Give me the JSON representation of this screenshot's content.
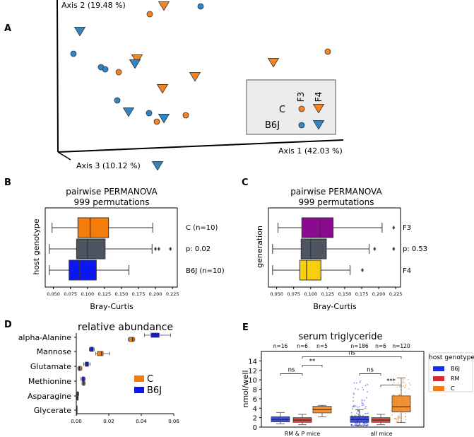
{
  "panel_letters": {
    "A": "A",
    "B": "B",
    "C": "C",
    "D": "D",
    "E": "E"
  },
  "colors": {
    "C_orange": "#f28522",
    "B6J_blue": "#2f86c4",
    "box_orange": "#f47d0c",
    "box_dark": "#4d5563",
    "box_blue": "#0b16f5",
    "box_purple": "#8a0b8e",
    "box_gold": "#f7cf0b",
    "E_blue": "#1a2fd6",
    "E_red": "#cf2f2a",
    "E_orange": "#f07e12",
    "legend_bg": "#ececec"
  },
  "chart_data": [
    {
      "id": "A",
      "type": "scatter",
      "subtype": "3d-pcoa",
      "axis_labels": {
        "x": "Axis 1 (42.03 %)",
        "y": "Axis 2 (19.48 %)",
        "z": "Axis 3 (10.12 %)"
      },
      "legend": {
        "columns": [
          "F3",
          "F4"
        ],
        "rows": [
          {
            "label": "C",
            "color": "#f28522"
          },
          {
            "label": "B6J",
            "color": "#2f86c4"
          }
        ]
      },
      "points": [
        {
          "group": "C",
          "generation": "F3",
          "x": 212,
          "y": 20
        },
        {
          "group": "C",
          "generation": "F4",
          "x": 232,
          "y": 8
        },
        {
          "group": "B6J",
          "generation": "F3",
          "x": 284,
          "y": 9
        },
        {
          "group": "B6J",
          "generation": "F4",
          "x": 113,
          "y": 44
        },
        {
          "group": "B6J",
          "generation": "F3",
          "x": 104,
          "y": 76
        },
        {
          "group": "B6J",
          "generation": "F3",
          "x": 143,
          "y": 95
        },
        {
          "group": "B6J",
          "generation": "F3",
          "x": 149,
          "y": 98
        },
        {
          "group": "C",
          "generation": "F3",
          "x": 168,
          "y": 102
        },
        {
          "group": "C",
          "generation": "F4",
          "x": 194,
          "y": 83
        },
        {
          "group": "B6J",
          "generation": "F4",
          "x": 191,
          "y": 90
        },
        {
          "group": "C",
          "generation": "F3",
          "x": 464,
          "y": 73
        },
        {
          "group": "C",
          "generation": "F4",
          "x": 387,
          "y": 88
        },
        {
          "group": "C",
          "generation": "F4",
          "x": 276,
          "y": 108
        },
        {
          "group": "C",
          "generation": "F4",
          "x": 230,
          "y": 125
        },
        {
          "group": "B6J",
          "generation": "F3",
          "x": 166,
          "y": 142
        },
        {
          "group": "B6J",
          "generation": "F4",
          "x": 182,
          "y": 158
        },
        {
          "group": "B6J",
          "generation": "F3",
          "x": 211,
          "y": 160
        },
        {
          "group": "B6J",
          "generation": "F4",
          "x": 232,
          "y": 167
        },
        {
          "group": "C",
          "generation": "F3",
          "x": 263,
          "y": 163
        },
        {
          "group": "C",
          "generation": "F3",
          "x": 222,
          "y": 172
        },
        {
          "group": "B6J",
          "generation": "F4",
          "x": 223,
          "y": 234
        }
      ]
    },
    {
      "id": "B",
      "type": "box",
      "title": "pairwise PERMANOVA",
      "subtitle": "999 permutations",
      "xlabel": "Bray-Curtis",
      "ylabel": "host genotype",
      "xlim": [
        0.04,
        0.23
      ],
      "ticks": [
        "0.050",
        "0.075",
        "0.100",
        "0.125",
        "0.150",
        "0.175",
        "0.200",
        "0.225"
      ],
      "right_labels": [
        "C (n=10)",
        "p: 0.02",
        "B6J (n=10)"
      ],
      "boxes": [
        {
          "label": "C (n=10)",
          "color": "#f47d0c",
          "whislo": 0.048,
          "q1": 0.086,
          "med": 0.104,
          "q3": 0.131,
          "whishi": 0.196,
          "fliers": []
        },
        {
          "label": "p: 0.02",
          "color": "#4d5563",
          "whislo": 0.044,
          "q1": 0.084,
          "med": 0.1,
          "q3": 0.126,
          "whishi": 0.195,
          "fliers": [
            0.2,
            0.205,
            0.222
          ]
        },
        {
          "label": "B6J (n=10)",
          "color": "#0b16f5",
          "whislo": 0.044,
          "q1": 0.073,
          "med": 0.088,
          "q3": 0.113,
          "whishi": 0.161,
          "fliers": []
        }
      ]
    },
    {
      "id": "C",
      "type": "box",
      "title": "pairwise PERMANOVA",
      "subtitle": "999 permutations",
      "xlabel": "Bray-Curtis",
      "ylabel": "generation",
      "xlim": [
        0.04,
        0.23
      ],
      "ticks": [
        "0.050",
        "0.075",
        "0.100",
        "0.125",
        "0.150",
        "0.175",
        "0.200",
        "0.225"
      ],
      "right_labels": [
        "F3",
        "p: 0.53",
        "F4"
      ],
      "boxes": [
        {
          "label": "F3",
          "color": "#8a0b8e",
          "whislo": 0.052,
          "q1": 0.087,
          "med": 0.114,
          "q3": 0.133,
          "whishi": 0.205,
          "fliers": [
            0.222
          ]
        },
        {
          "label": "p: 0.53",
          "color": "#4d5563",
          "whislo": 0.044,
          "q1": 0.086,
          "med": 0.1,
          "q3": 0.123,
          "whishi": 0.186,
          "fliers": [
            0.194,
            0.222
          ]
        },
        {
          "label": "F4",
          "color": "#f7cf0b",
          "whislo": 0.044,
          "q1": 0.084,
          "med": 0.094,
          "q3": 0.115,
          "whishi": 0.158,
          "fliers": [
            0.176
          ]
        }
      ]
    },
    {
      "id": "D",
      "type": "box",
      "title": "relative abundance",
      "xlim": [
        0,
        0.06
      ],
      "ticks": [
        "0.00",
        "0.02",
        "0.04",
        "0.06"
      ],
      "categories": [
        "alpha-Alanine",
        "Mannose",
        "Glutamate",
        "Methionine",
        "Asparagine",
        "Glycerate"
      ],
      "legend": [
        {
          "label": "C",
          "color": "#f47d0c"
        },
        {
          "label": "B6J",
          "color": "#0b16f5"
        }
      ],
      "series": [
        {
          "name": "C",
          "color": "#f47d0c",
          "boxes": [
            {
              "whislo": 0.032,
              "q1": 0.0325,
              "med": 0.0345,
              "q3": 0.0355,
              "whishi": 0.036
            },
            {
              "whislo": 0.012,
              "q1": 0.013,
              "med": 0.0155,
              "q3": 0.0165,
              "whishi": 0.0205
            },
            {
              "whislo": 0.001,
              "q1": 0.0015,
              "med": 0.002,
              "q3": 0.003,
              "whishi": 0.0035
            },
            {
              "whislo": 0.0035,
              "q1": 0.004,
              "med": 0.0045,
              "q3": 0.005,
              "whishi": 0.0055
            },
            {
              "whislo": 0.0004,
              "q1": 0.0006,
              "med": 0.0008,
              "q3": 0.001,
              "whishi": 0.0012
            },
            {
              "whislo": 0.0,
              "q1": 0.0001,
              "med": 0.0002,
              "q3": 0.0003,
              "whishi": 0.0004
            }
          ]
        },
        {
          "name": "B6J",
          "color": "#0b16f5",
          "boxes": [
            {
              "whislo": 0.042,
              "q1": 0.046,
              "med": 0.049,
              "q3": 0.051,
              "whishi": 0.058
            },
            {
              "whislo": 0.008,
              "q1": 0.0085,
              "med": 0.0095,
              "q3": 0.0105,
              "whishi": 0.011
            },
            {
              "whislo": 0.0045,
              "q1": 0.0055,
              "med": 0.0065,
              "q3": 0.0075,
              "whishi": 0.0085
            },
            {
              "whislo": 0.0028,
              "q1": 0.0035,
              "med": 0.0042,
              "q3": 0.005,
              "whishi": 0.0055
            },
            {
              "whislo": 0.0003,
              "q1": 0.0006,
              "med": 0.0009,
              "q3": 0.0012,
              "whishi": 0.0015
            },
            {
              "whislo": 0.0,
              "q1": 0.0001,
              "med": 0.0002,
              "q3": 0.0003,
              "whishi": 0.0004
            }
          ]
        }
      ]
    },
    {
      "id": "E",
      "type": "box",
      "title": "serum triglyceride",
      "ylabel": "nmol/well",
      "ylim": [
        0,
        16
      ],
      "yticks": [
        "0",
        "2",
        "4",
        "6",
        "8",
        "10",
        "12",
        "14"
      ],
      "groups": [
        "RM & P mice",
        "all mice"
      ],
      "n_labels": [
        "n=16",
        "n=6",
        "n=5",
        "n=186",
        "n=6",
        "n=120"
      ],
      "legend_title": "host genotype",
      "legend": [
        {
          "label": "B6J",
          "color": "#1a2fd6"
        },
        {
          "label": "RM",
          "color": "#cf2f2a"
        },
        {
          "label": "C",
          "color": "#f07e12"
        }
      ],
      "boxes": [
        {
          "group": "RM & P mice",
          "genotype": "B6J",
          "color": "#1a2fd6",
          "whislo": 0.7,
          "q1": 1.1,
          "med": 1.6,
          "q3": 2.2,
          "whishi": 3.1
        },
        {
          "group": "RM & P mice",
          "genotype": "RM",
          "color": "#cf2f2a",
          "whislo": 0.5,
          "q1": 1.0,
          "med": 1.5,
          "q3": 2.0,
          "whishi": 2.7
        },
        {
          "group": "RM & P mice",
          "genotype": "C",
          "color": "#f07e12",
          "whislo": 2.2,
          "q1": 3.0,
          "med": 3.7,
          "q3": 4.4,
          "whishi": 4.6
        },
        {
          "group": "all mice",
          "genotype": "B6J",
          "color": "#1a2fd6",
          "whislo": 0.3,
          "q1": 1.0,
          "med": 1.6,
          "q3": 2.3,
          "whishi": 3.7
        },
        {
          "group": "all mice",
          "genotype": "RM",
          "color": "#cf2f2a",
          "whislo": 0.5,
          "q1": 1.0,
          "med": 1.5,
          "q3": 2.0,
          "whishi": 2.7
        },
        {
          "group": "all mice",
          "genotype": "C",
          "color": "#f07e12",
          "whislo": 1.0,
          "q1": 3.2,
          "med": 4.3,
          "q3": 6.6,
          "whishi": 10.4
        }
      ],
      "significance": [
        {
          "label": "ns",
          "from": 0,
          "to": 1,
          "y": 11.3
        },
        {
          "label": "**",
          "from": 1,
          "to": 2,
          "y": 13.1
        },
        {
          "label": "ns",
          "from": 1,
          "to": 5,
          "y": 14.9
        },
        {
          "label": "ns",
          "from": 3,
          "to": 4,
          "y": 11.3
        },
        {
          "label": "***",
          "from": 4,
          "to": 5,
          "y": 8.9
        }
      ]
    }
  ]
}
